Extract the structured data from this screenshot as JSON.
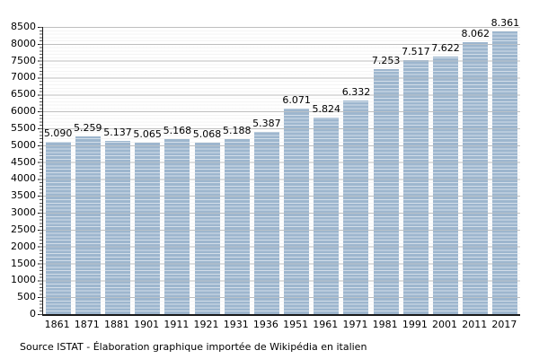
{
  "chart_data": {
    "type": "bar",
    "categories": [
      "1861",
      "1871",
      "1881",
      "1901",
      "1911",
      "1921",
      "1931",
      "1936",
      "1951",
      "1961",
      "1971",
      "1981",
      "1991",
      "2001",
      "2011",
      "2017"
    ],
    "values": [
      5090,
      5259,
      5137,
      5065,
      5168,
      5068,
      5188,
      5387,
      6071,
      5824,
      6332,
      7253,
      7517,
      7622,
      8062,
      8361
    ],
    "value_labels": [
      "5.090",
      "5.259",
      "5.137",
      "5.065",
      "5.168",
      "5.068",
      "5.188",
      "5.387",
      "6.071",
      "5.824",
      "6.332",
      "7.253",
      "7.517",
      "7.622",
      "8.062",
      "8.361"
    ],
    "title": "",
    "xlabel": "",
    "ylabel": "",
    "ylim": [
      0,
      8500
    ],
    "y_major_step": 500,
    "y_minor_step": 100,
    "grid": "horizontal major and minor, on",
    "legend": "none",
    "colors": {
      "bar_fill": "#9db6ce",
      "major_grid": "#ababab",
      "minor_grid": "#e6e6e6",
      "axis": "#1a1a1a",
      "text": "#000000",
      "background": "#ffffff"
    }
  },
  "source": {
    "text": "Source ISTAT - Élaboration graphique importée de Wikipédia en italien"
  }
}
